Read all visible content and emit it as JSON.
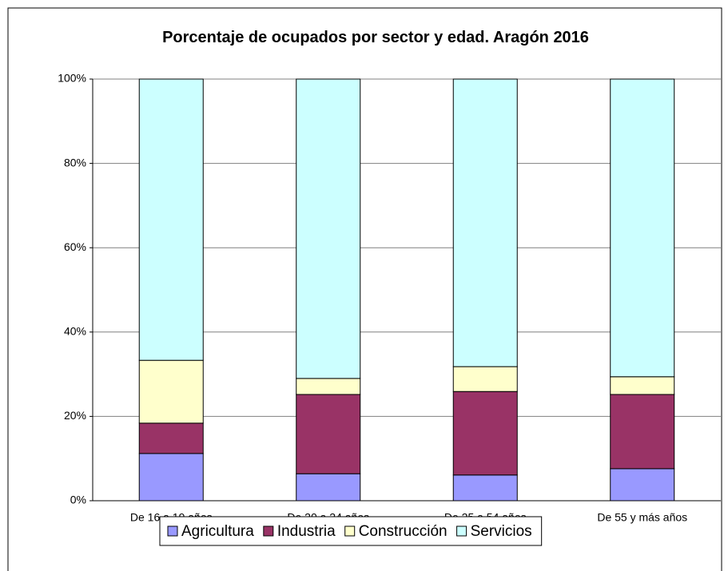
{
  "chart_data": {
    "type": "stacked_bar",
    "title": "Porcentaje de ocupados por sector y edad. Aragón 2016",
    "categories": [
      "De 16 a 19 años",
      "De 20 a 24 años",
      "De 25 a 54 años",
      "De 55 y más años"
    ],
    "series": [
      {
        "name": "Agricultura",
        "color": "#9999ff",
        "values": [
          11.2,
          6.4,
          6.1,
          7.6
        ]
      },
      {
        "name": "Industria",
        "color": "#993366",
        "values": [
          7.2,
          18.8,
          19.8,
          17.6
        ]
      },
      {
        "name": "Construcción",
        "color": "#ffffcc",
        "values": [
          14.9,
          3.8,
          5.9,
          4.2
        ]
      },
      {
        "name": "Servicios",
        "color": "#ccffff",
        "values": [
          66.7,
          71.0,
          68.2,
          70.6
        ]
      }
    ],
    "ylim": [
      0,
      100
    ],
    "yticks": [
      {
        "value": 0,
        "label": "0%"
      },
      {
        "value": 20,
        "label": "20%"
      },
      {
        "value": 40,
        "label": "40%"
      },
      {
        "value": 60,
        "label": "60%"
      },
      {
        "value": 80,
        "label": "80%"
      },
      {
        "value": 100,
        "label": "100%"
      }
    ],
    "grid": true,
    "legend": "bottom"
  }
}
